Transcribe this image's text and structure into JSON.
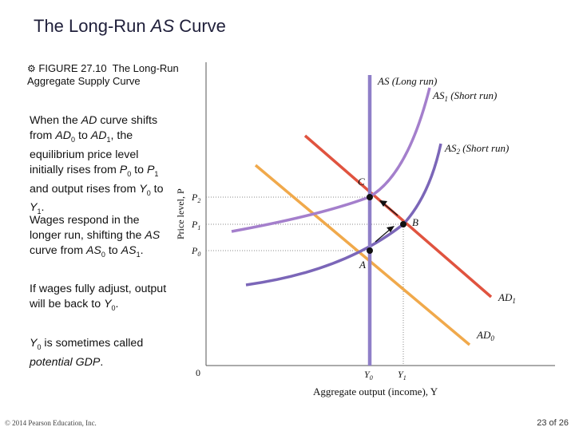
{
  "slide": {
    "title_text": "The Long-Run ",
    "title_italic": "AS",
    "title_tail": " Curve",
    "figure_icon": "gear-icon",
    "figure_label": "FIGURE 27.10",
    "figure_title": "The Long-Run Aggregate Supply Curve",
    "footer_copyright": "© 2014 Pearson Education, Inc.",
    "footer_page": "23 of 26"
  },
  "text": {
    "p1": "When the AD curve shifts from AD0 to AD1, the equilibrium price level initially rises from P0 to P1 and output rises from Y0 to Y1.",
    "p2": "Wages respond in the longer run, shifting the AS curve from AS0 to AS1.",
    "p3": "If wages fully adjust, output will be back to Y0.",
    "p4": "Y0 is sometimes called potential GDP."
  },
  "chart_data": {
    "type": "diagram",
    "xlabel": "Aggregate output (income), Y",
    "ylabel": "Price level, P",
    "origin_label": "0",
    "x_ticks": [
      {
        "label": "Y",
        "sub": "0"
      },
      {
        "label": "Y",
        "sub": "1"
      }
    ],
    "y_ticks": [
      {
        "label": "P",
        "sub": "2"
      },
      {
        "label": "P",
        "sub": "1"
      },
      {
        "label": "P",
        "sub": "0"
      }
    ],
    "curves": [
      {
        "id": "as-long-run",
        "label": "AS (Long run)",
        "color": "#8f7fc8"
      },
      {
        "id": "as1-short-run",
        "label": "AS1 (Short run)",
        "color": "#a47fcc"
      },
      {
        "id": "as2-short-run",
        "label": "AS2 (Short run)",
        "color": "#7b66b8"
      },
      {
        "id": "ad1",
        "label": "AD1",
        "color": "#e0533f"
      },
      {
        "id": "ad0",
        "label": "AD0",
        "color": "#f0a94b"
      }
    ],
    "points": [
      {
        "label": "C"
      },
      {
        "label": "B"
      },
      {
        "label": "A"
      }
    ],
    "labels": {
      "as_long_run": "AS (Long run)",
      "as1_main": "AS",
      "as1_sub": "1",
      "as1_tail": " (Short run)",
      "as2_main": "AS",
      "as2_sub": "2",
      "as2_tail": " (Short run)",
      "ad1_main": "AD",
      "ad1_sub": "1",
      "ad0_main": "AD",
      "ad0_sub": "0",
      "point_c": "C",
      "point_b": "B",
      "point_a": "A"
    }
  }
}
